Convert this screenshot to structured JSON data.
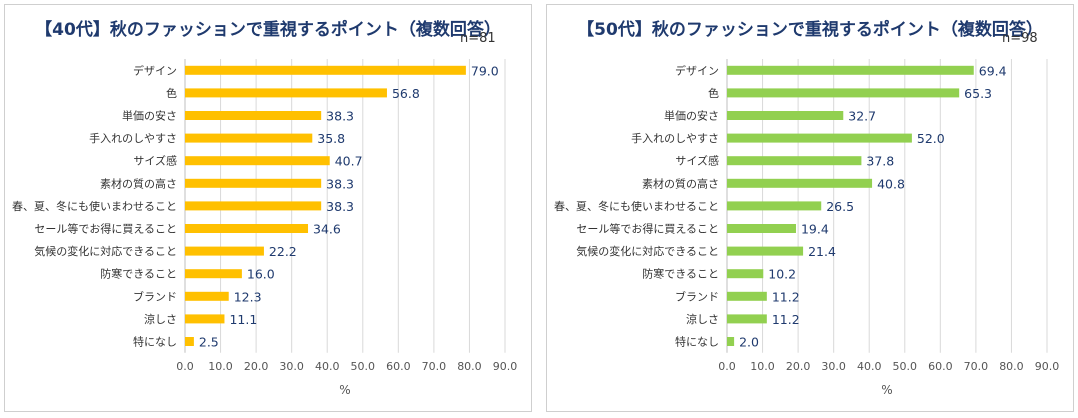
{
  "chart_data": [
    {
      "type": "bar",
      "orientation": "horizontal",
      "title": "【40代】秋のファッションで重視するポイント（複数回答）",
      "n": "n=81",
      "xlabel": "%",
      "xlim": [
        0,
        90
      ],
      "ticks": [
        "0.0",
        "10.0",
        "20.0",
        "30.0",
        "40.0",
        "50.0",
        "60.0",
        "70.0",
        "80.0",
        "90.0"
      ],
      "color": "#FFC000",
      "categories": [
        "デザイン",
        "色",
        "単価の安さ",
        "手入れのしやすさ",
        "サイズ感",
        "素材の質の高さ",
        "春、夏、冬にも使いまわせること",
        "セール等でお得に買えること",
        "気候の変化に対応できること",
        "防寒できること",
        "ブランド",
        "涼しさ",
        "特になし"
      ],
      "values": [
        79.0,
        56.8,
        38.3,
        35.8,
        40.7,
        38.3,
        38.3,
        34.6,
        22.2,
        16.0,
        12.3,
        11.1,
        2.5
      ],
      "labels": [
        "79.0",
        "56.8",
        "38.3",
        "35.8",
        "40.7",
        "38.3",
        "38.3",
        "34.6",
        "22.2",
        "16.0",
        "12.3",
        "11.1",
        "2.5"
      ]
    },
    {
      "type": "bar",
      "orientation": "horizontal",
      "title": "【50代】秋のファッションで重視するポイント（複数回答）",
      "n": "n=98",
      "xlabel": "%",
      "xlim": [
        0,
        90
      ],
      "ticks": [
        "0.0",
        "10.0",
        "20.0",
        "30.0",
        "40.0",
        "50.0",
        "60.0",
        "70.0",
        "80.0",
        "90.0"
      ],
      "color": "#92D050",
      "categories": [
        "デザイン",
        "色",
        "単価の安さ",
        "手入れのしやすさ",
        "サイズ感",
        "素材の質の高さ",
        "春、夏、冬にも使いまわせること",
        "セール等でお得に買えること",
        "気候の変化に対応できること",
        "防寒できること",
        "ブランド",
        "涼しさ",
        "特になし"
      ],
      "values": [
        69.4,
        65.3,
        32.7,
        52.0,
        37.8,
        40.8,
        26.5,
        19.4,
        21.4,
        10.2,
        11.2,
        11.2,
        2.0
      ],
      "labels": [
        "69.4",
        "65.3",
        "32.7",
        "52.0",
        "37.8",
        "40.8",
        "26.5",
        "19.4",
        "21.4",
        "10.2",
        "11.2",
        "11.2",
        "2.0"
      ]
    }
  ]
}
